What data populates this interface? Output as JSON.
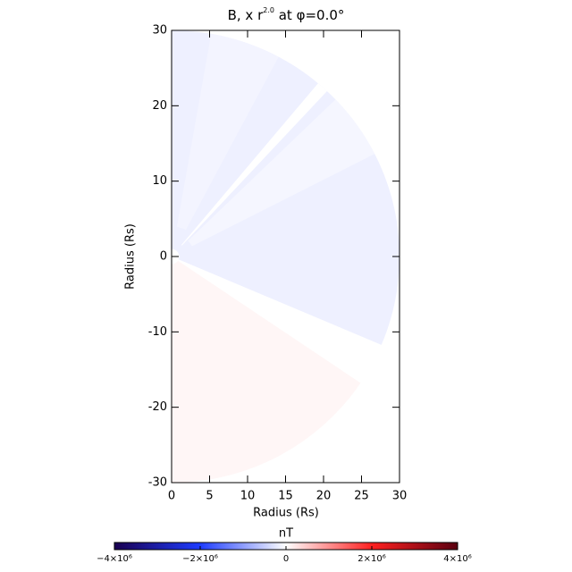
{
  "chart_data": {
    "type": "polar-image",
    "title_parts": [
      "B, x r",
      "2.0",
      " at φ=0.0°"
    ],
    "x_label": "Radius (Rs)",
    "y_label": "Radius (Rs)",
    "xlim": [
      0,
      30
    ],
    "ylim": [
      -30,
      30
    ],
    "xticks": [
      0,
      5,
      10,
      15,
      20,
      25,
      30
    ],
    "yticks": [
      -30,
      -20,
      -10,
      0,
      10,
      20,
      30
    ],
    "regions": [
      {
        "theta": [
          -23,
          90
        ],
        "r": [
          1,
          30
        ],
        "value": -150000
      },
      {
        "theta": [
          27,
          44
        ],
        "r": [
          3,
          30
        ],
        "value": -90000
      },
      {
        "theta": [
          47,
          50
        ],
        "r": [
          2,
          30
        ],
        "value": 0
      },
      {
        "theta": [
          62,
          80
        ],
        "r": [
          4,
          30
        ],
        "value": -110000
      },
      {
        "theta": [
          -90,
          -34
        ],
        "r": [
          1,
          30
        ],
        "value": 80000
      }
    ],
    "colorbar": {
      "label": "nT",
      "lim": [
        -4000000,
        4000000
      ],
      "colors": [
        "#1a0050",
        "#1e3cff",
        "#ffffff",
        "#ff2020",
        "#5a0010"
      ],
      "ticks": [
        {
          "value": -4000000,
          "label": "−4×10⁶"
        },
        {
          "value": -2000000,
          "label": "−2×10⁶"
        },
        0,
        {
          "value": 2000000,
          "label": "2×10⁶"
        },
        {
          "value": 4000000,
          "label": "4×10⁶"
        }
      ]
    }
  }
}
